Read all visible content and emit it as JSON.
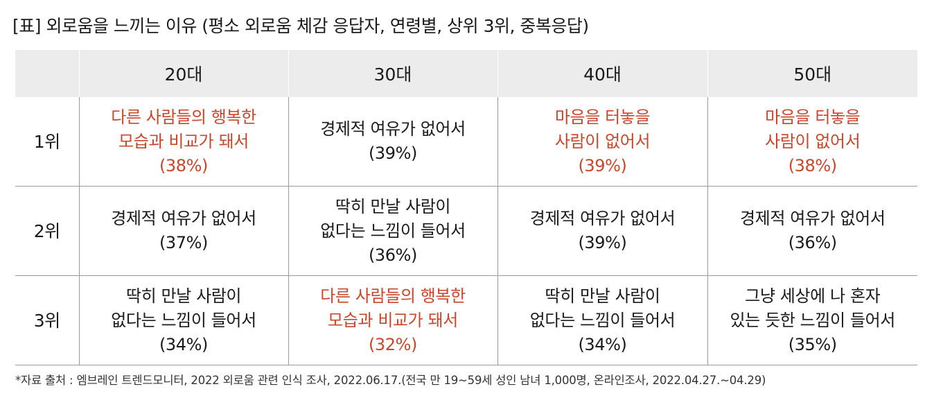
{
  "title": "[표] 외로움을 느끼는 이유 (평소 외로움 체감 응답자, 연령별, 상위 3위, 중복응답)",
  "colors": {
    "highlight": "#c8472c",
    "header_bg": "#ececec",
    "text": "#1a1a1a"
  },
  "table": {
    "headers": [
      "",
      "20대",
      "30대",
      "40대",
      "50대"
    ],
    "rows": [
      {
        "rank": "1위",
        "cells": [
          {
            "lines": [
              "다른 사람들의 행복한",
              "모습과 비교가 돼서",
              "(38%)"
            ],
            "highlight": true
          },
          {
            "lines": [
              "경제적 여유가 없어서",
              "(39%)"
            ],
            "highlight": false
          },
          {
            "lines": [
              "마음을 터놓을",
              "사람이 없어서",
              "(39%)"
            ],
            "highlight": true
          },
          {
            "lines": [
              "마음을 터놓을",
              "사람이 없어서",
              "(38%)"
            ],
            "highlight": true
          }
        ]
      },
      {
        "rank": "2위",
        "cells": [
          {
            "lines": [
              "경제적 여유가 없어서",
              "(37%)"
            ],
            "highlight": false
          },
          {
            "lines": [
              "딱히 만날 사람이",
              "없다는 느낌이 들어서",
              "(36%)"
            ],
            "highlight": false
          },
          {
            "lines": [
              "경제적 여유가 없어서",
              "(39%)"
            ],
            "highlight": false
          },
          {
            "lines": [
              "경제적 여유가 없어서",
              "(36%)"
            ],
            "highlight": false
          }
        ]
      },
      {
        "rank": "3위",
        "cells": [
          {
            "lines": [
              "딱히 만날 사람이",
              "없다는 느낌이 들어서",
              "(34%)"
            ],
            "highlight": false
          },
          {
            "lines": [
              "다른 사람들의 행복한",
              "모습과 비교가 돼서",
              "(32%)"
            ],
            "highlight": true
          },
          {
            "lines": [
              "딱히 만날 사람이",
              "없다는 느낌이 들어서",
              "(34%)"
            ],
            "highlight": false
          },
          {
            "lines": [
              "그냥 세상에 나 혼자",
              "있는 듯한 느낌이 들어서",
              "(35%)"
            ],
            "highlight": false
          }
        ]
      }
    ]
  },
  "footnote": "*자료 출처 : 엠브레인 트렌드모니터, 2022 외로움 관련 인식 조사, 2022.06.17.(전국 만 19~59세  성인 남녀 1,000명, 온라인조사, 2022.04.27.~04.29)"
}
